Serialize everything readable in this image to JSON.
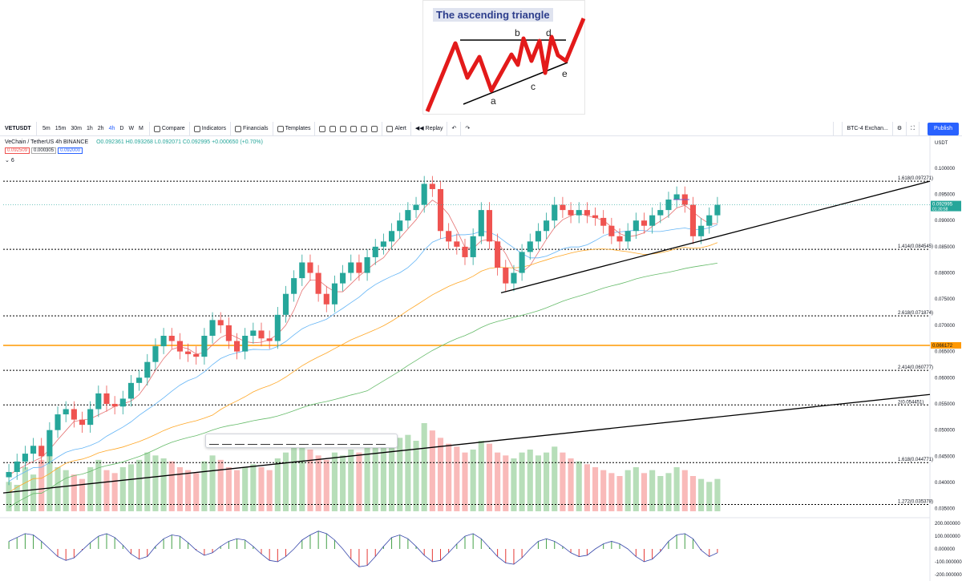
{
  "inset": {
    "title": "The ascending triangle",
    "labels": {
      "a": "a",
      "b": "b",
      "c": "c",
      "d": "d",
      "e": "e"
    }
  },
  "toolbar": {
    "symbol": "VETUSDT",
    "timeframes": [
      "5m",
      "15m",
      "30m",
      "1h",
      "2h",
      "4h",
      "D",
      "W",
      "M"
    ],
    "active_timeframe": "4h",
    "compare": "Compare",
    "indicators": "Indicators",
    "financials": "Financials",
    "templates": "Templates",
    "alert": "Alert",
    "replay": "Replay",
    "exchange": "BTC-4 Exchan...",
    "publish": "Publish"
  },
  "legend": {
    "name": "VeChain / TetherUS  4h  BINANCE",
    "ohlc": "O0.092361 H0.093268 L0.092071 C0.092995 +0.000650 (+0.70%)",
    "box1": "0.092509",
    "box2": "0.000305",
    "box3": "0.092000",
    "collapse": "6"
  },
  "chart_data": {
    "type": "candlestick",
    "currency": "USDT",
    "y_ticks": [
      "0.100000",
      "0.095000",
      "0.090000",
      "0.085000",
      "0.080000",
      "0.075000",
      "0.070000",
      "0.065000",
      "0.060000",
      "0.055000",
      "0.050000",
      "0.045000",
      "0.040000",
      "0.035000"
    ],
    "osc_ticks": [
      "200.000000",
      "100.000000",
      "0.000000",
      "-100.000000",
      "-200.000000"
    ],
    "last_price": "0.092995",
    "countdown": "01:30:58",
    "orange_level": "0.066172",
    "fib_levels": [
      {
        "value": 0.0975,
        "label": "1.618(0.097271)"
      },
      {
        "value": 0.0845,
        "label": "1.414(0.084545)"
      },
      {
        "value": 0.0718,
        "label": "2.618(0.071874)"
      },
      {
        "value": 0.0614,
        "label": "2.414(0.060777)"
      },
      {
        "value": 0.0548,
        "label": "2(0.054451)"
      },
      {
        "value": 0.0438,
        "label": "1.618(0.044771)"
      },
      {
        "value": 0.0358,
        "label": "1.272(0.035378)"
      }
    ],
    "close": [
      0.042,
      0.044,
      0.0455,
      0.047,
      0.045,
      0.05,
      0.053,
      0.054,
      0.052,
      0.051,
      0.054,
      0.057,
      0.055,
      0.0545,
      0.056,
      0.059,
      0.06,
      0.063,
      0.066,
      0.068,
      0.067,
      0.065,
      0.0645,
      0.064,
      0.068,
      0.071,
      0.07,
      0.067,
      0.065,
      0.068,
      0.069,
      0.0675,
      0.067,
      0.072,
      0.076,
      0.079,
      0.082,
      0.08,
      0.076,
      0.074,
      0.078,
      0.08,
      0.082,
      0.08,
      0.083,
      0.085,
      0.086,
      0.088,
      0.09,
      0.092,
      0.093,
      0.097,
      0.096,
      0.088,
      0.086,
      0.085,
      0.083,
      0.087,
      0.092,
      0.086,
      0.081,
      0.078,
      0.08,
      0.084,
      0.086,
      0.088,
      0.09,
      0.093,
      0.092,
      0.091,
      0.092,
      0.091,
      0.0905,
      0.089,
      0.087,
      0.086,
      0.088,
      0.09,
      0.089,
      0.091,
      0.092,
      0.094,
      0.095,
      0.093,
      0.087,
      0.089,
      0.091,
      0.093
    ],
    "volume": [
      20,
      18,
      30,
      25,
      35,
      40,
      30,
      28,
      25,
      22,
      30,
      35,
      28,
      26,
      30,
      32,
      35,
      40,
      38,
      36,
      34,
      30,
      28,
      26,
      34,
      38,
      35,
      30,
      28,
      30,
      32,
      30,
      28,
      36,
      40,
      45,
      50,
      42,
      38,
      35,
      40,
      38,
      42,
      40,
      45,
      48,
      44,
      46,
      50,
      52,
      48,
      60,
      55,
      50,
      46,
      44,
      40,
      42,
      48,
      46,
      40,
      38,
      36,
      40,
      42,
      38,
      40,
      44,
      40,
      36,
      34,
      32,
      30,
      28,
      26,
      24,
      28,
      30,
      26,
      28,
      24,
      26,
      30,
      28,
      24,
      22,
      20,
      22
    ],
    "oscillator": [
      60,
      90,
      120,
      110,
      60,
      0,
      -60,
      -90,
      -70,
      -10,
      50,
      100,
      120,
      90,
      30,
      -40,
      -80,
      -60,
      20,
      80,
      110,
      100,
      50,
      -10,
      -50,
      -30,
      20,
      60,
      80,
      70,
      20,
      -40,
      -90,
      -100,
      -60,
      0,
      70,
      110,
      140,
      120,
      70,
      0,
      -80,
      -140,
      -130,
      -60,
      20,
      90,
      110,
      80,
      20,
      -50,
      -100,
      -90,
      -30,
      40,
      100,
      120,
      80,
      10,
      -60,
      -110,
      -120,
      -70,
      0,
      60,
      80,
      60,
      20,
      -30,
      -60,
      -50,
      0,
      40,
      60,
      40,
      0,
      -60,
      -100,
      -80,
      -20,
      60,
      110,
      120,
      80,
      -10,
      -60,
      -30
    ]
  }
}
